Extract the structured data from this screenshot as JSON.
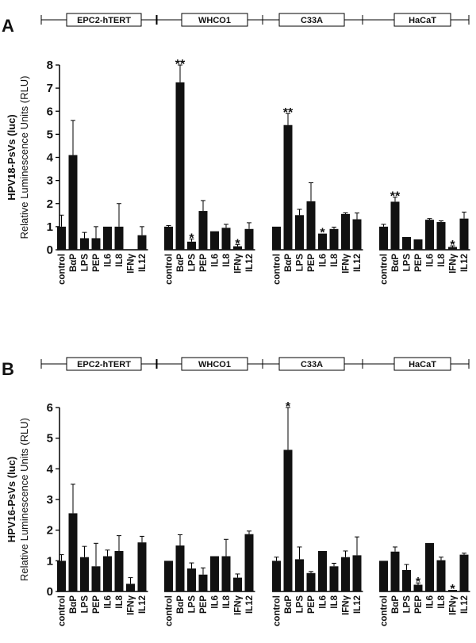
{
  "chart_data": [
    {
      "type": "bar",
      "panel": "A",
      "ylabel_line1": "HPV18-PsVs (luc)",
      "ylabel_line2": "Relative Luminescence Units (RLU)",
      "ylim": [
        0,
        8
      ],
      "yticks": [
        "0",
        "1",
        "2",
        "3",
        "4",
        "5",
        "6",
        "7",
        "8"
      ],
      "categories": [
        "control",
        "BαP",
        "LPS",
        "PEP",
        "IL6",
        "IL8",
        "IFNγ",
        "IL12"
      ],
      "groups": [
        {
          "name": "EPC2-hTERT",
          "values": [
            1.0,
            4.1,
            0.5,
            0.5,
            1.0,
            1.0,
            0.0,
            0.63
          ],
          "errors": [
            0.5,
            1.5,
            0.25,
            0.5,
            0.0,
            1.0,
            0.0,
            0.37
          ],
          "sig": [
            "",
            "",
            "",
            "",
            "",
            "",
            "",
            ""
          ]
        },
        {
          "name": "WHCO1",
          "values": [
            1.0,
            7.25,
            0.35,
            1.68,
            0.8,
            0.95,
            0.15,
            0.9
          ],
          "errors": [
            0.05,
            0.75,
            0.12,
            0.45,
            0.0,
            0.15,
            0.08,
            0.27
          ],
          "sig": [
            "",
            "**",
            "*",
            "",
            "",
            "",
            "*",
            ""
          ]
        },
        {
          "name": "C33A",
          "values": [
            1.0,
            5.4,
            1.5,
            2.1,
            0.7,
            0.9,
            1.55,
            1.32
          ],
          "errors": [
            0.0,
            0.5,
            0.25,
            0.8,
            0.0,
            0.08,
            0.05,
            0.27
          ],
          "sig": [
            "",
            "**",
            "",
            "",
            "*",
            "",
            "",
            ""
          ]
        },
        {
          "name": "HaCaT",
          "values": [
            1.0,
            2.08,
            0.55,
            0.45,
            1.3,
            1.2,
            0.12,
            1.35
          ],
          "errors": [
            0.1,
            0.2,
            0.0,
            0.0,
            0.05,
            0.05,
            0.05,
            0.28
          ],
          "sig": [
            "",
            "**",
            "",
            "",
            "",
            "",
            "*",
            ""
          ]
        }
      ]
    },
    {
      "type": "bar",
      "panel": "B",
      "ylabel_line1": "HPV16-PsVs (luc)",
      "ylabel_line2": "Relative Luminescence Units (RLU)",
      "ylim": [
        0,
        6
      ],
      "yticks": [
        "0",
        "1",
        "2",
        "3",
        "4",
        "5",
        "6"
      ],
      "categories": [
        "control",
        "BαP",
        "LPS",
        "PEP",
        "IL6",
        "IL8",
        "IFNγ",
        "IL12"
      ],
      "groups": [
        {
          "name": "EPC2-hTERT",
          "values": [
            1.0,
            2.55,
            1.12,
            0.82,
            1.15,
            1.32,
            0.25,
            1.6
          ],
          "errors": [
            0.2,
            0.95,
            0.35,
            0.75,
            0.2,
            0.5,
            0.2,
            0.2
          ],
          "sig": [
            "",
            "",
            "",
            "",
            "",
            "",
            "",
            ""
          ]
        },
        {
          "name": "WHCO1",
          "values": [
            1.0,
            1.5,
            0.75,
            0.55,
            1.15,
            1.15,
            0.45,
            1.87
          ],
          "errors": [
            0.0,
            0.35,
            0.18,
            0.22,
            0.0,
            0.55,
            0.12,
            0.1
          ],
          "sig": [
            "",
            "",
            "",
            "",
            "",
            "",
            "",
            ""
          ]
        },
        {
          "name": "C33A",
          "values": [
            1.0,
            4.62,
            1.05,
            0.6,
            1.32,
            0.82,
            1.12,
            1.18
          ],
          "errors": [
            0.12,
            1.38,
            0.4,
            0.05,
            0.0,
            0.1,
            0.2,
            0.6
          ],
          "sig": [
            "",
            "*",
            "",
            "",
            "",
            "",
            "",
            ""
          ]
        },
        {
          "name": "HaCaT",
          "values": [
            1.0,
            1.3,
            0.7,
            0.22,
            1.58,
            1.02,
            0.05,
            1.2
          ],
          "errors": [
            0.0,
            0.15,
            0.18,
            0.06,
            0.0,
            0.1,
            0.0,
            0.05
          ],
          "sig": [
            "",
            "",
            "",
            "*",
            "",
            "",
            "*",
            ""
          ]
        }
      ]
    }
  ]
}
